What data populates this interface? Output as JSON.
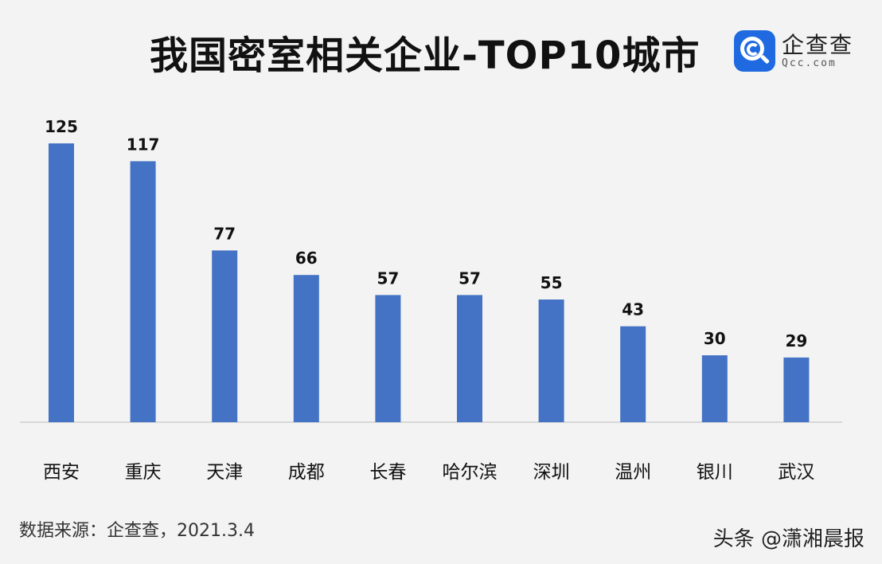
{
  "header": {
    "title": "我国密室相关企业-TOP10城市",
    "logo_cn": "企查查",
    "logo_en": "Qcc.com"
  },
  "footer": {
    "source": "数据来源：企查查，2021.3.4",
    "watermark": "头条 @潇湘晨报"
  },
  "colors": {
    "bar": "#4472c4",
    "background": "#f3f3f3",
    "logo": "#1f6ae0"
  },
  "chart_data": {
    "type": "bar",
    "title": "我国密室相关企业-TOP10城市",
    "categories": [
      "西安",
      "重庆",
      "天津",
      "成都",
      "长春",
      "哈尔滨",
      "深圳",
      "温州",
      "银川",
      "武汉"
    ],
    "values": [
      125,
      117,
      77,
      66,
      57,
      57,
      55,
      43,
      30,
      29
    ],
    "value_labels": [
      "125",
      "117",
      "77",
      "66",
      "57",
      "57",
      "55",
      "43",
      "30",
      "29"
    ],
    "xlabel": "",
    "ylabel": "",
    "ylim": [
      0,
      125
    ],
    "grid": false,
    "legend": "none",
    "data_labels": "on-top"
  }
}
